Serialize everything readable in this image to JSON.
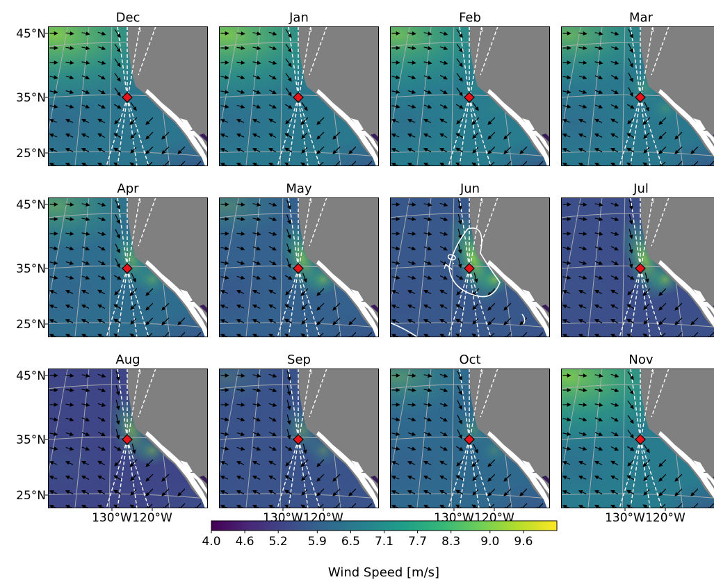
{
  "chart_data": {
    "type": "heatmap",
    "panel_titles": [
      "Dec",
      "Jan",
      "Feb",
      "Mar",
      "Apr",
      "May",
      "Jun",
      "Jul",
      "Aug",
      "Sep",
      "Oct",
      "Nov"
    ],
    "y_tick_labels": [
      "45°N",
      "35°N",
      "25°N"
    ],
    "x_tick_labels": [
      "130°W",
      "120°W"
    ],
    "colorbar": {
      "label": "Wind Speed [m/s]",
      "ticks": [
        "4.0",
        "4.6",
        "5.2",
        "5.9",
        "6.5",
        "7.1",
        "7.7",
        "8.3",
        "9.0",
        "9.6"
      ],
      "range": [
        4.0,
        10.2
      ],
      "colormap": [
        "#440154",
        "#482878",
        "#3e4a89",
        "#31688e",
        "#26828e",
        "#1f9e89",
        "#35b779",
        "#6ece58",
        "#b5de2b",
        "#fde725"
      ]
    },
    "contour_label": "7.0",
    "contour_panel": "Jun",
    "marker": {
      "color": "#e8141b",
      "shape": "diamond"
    },
    "land_color": "#808080",
    "grid": true,
    "panel_mean_speed": {
      "Dec": 6.4,
      "Jan": 6.5,
      "Feb": 6.6,
      "Mar": 6.5,
      "Apr": 6.2,
      "May": 5.9,
      "Jun": 5.7,
      "Jul": 5.5,
      "Aug": 5.3,
      "Sep": 5.6,
      "Oct": 6.1,
      "Nov": 6.6
    }
  }
}
